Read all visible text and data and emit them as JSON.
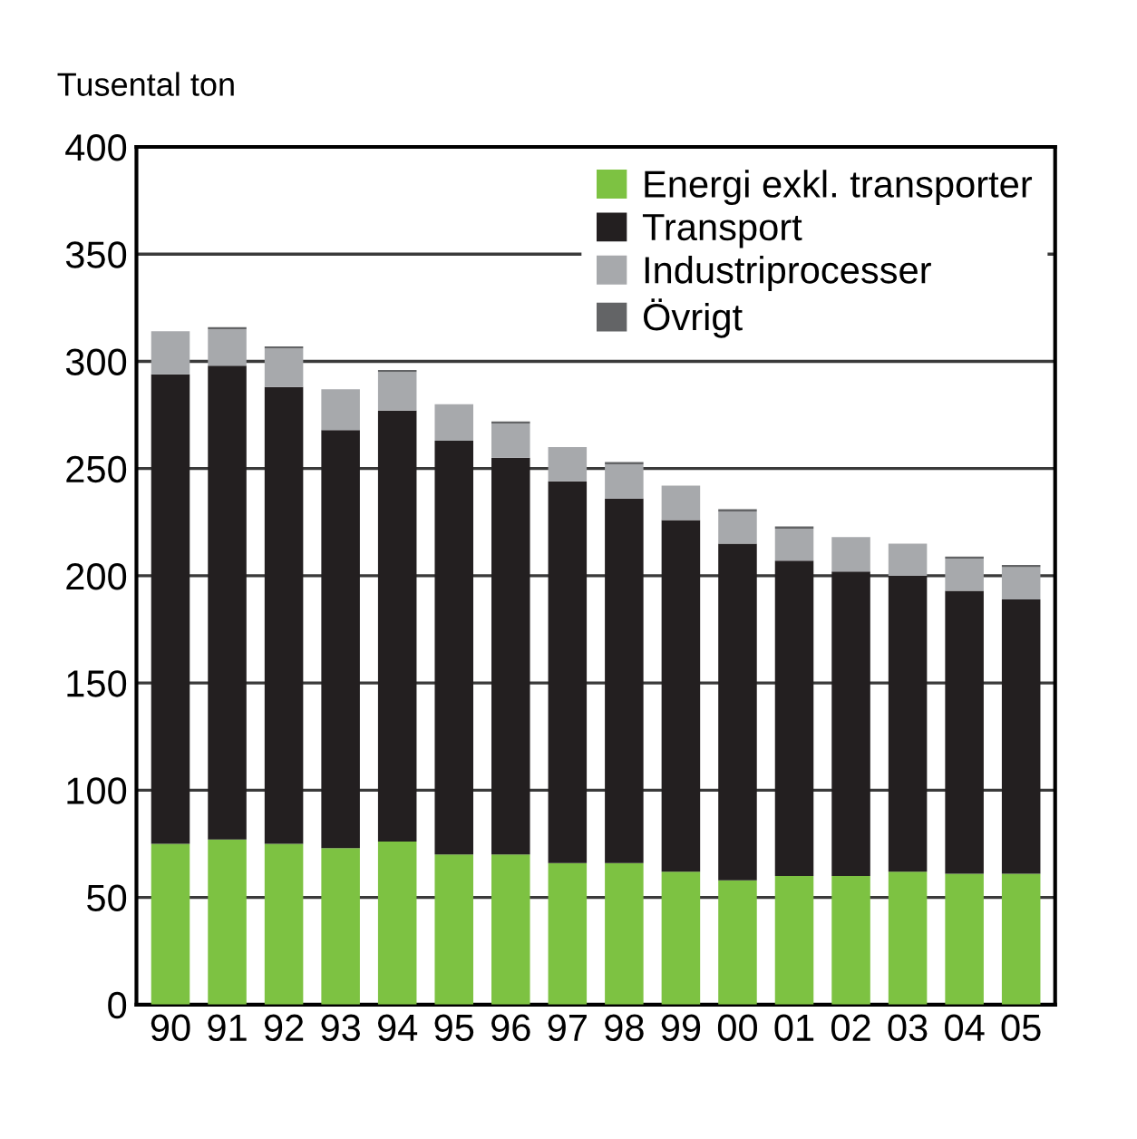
{
  "chart_data": {
    "type": "bar",
    "stacked": true,
    "ylabel": "Tusental ton",
    "categories": [
      "90",
      "91",
      "92",
      "93",
      "94",
      "95",
      "96",
      "97",
      "98",
      "99",
      "00",
      "01",
      "02",
      "03",
      "04",
      "05"
    ],
    "series": [
      {
        "name": "Energi exkl. transporter",
        "color": "#7dc242",
        "values": [
          75,
          77,
          75,
          73,
          76,
          70,
          70,
          66,
          66,
          62,
          58,
          60,
          60,
          62,
          61,
          61
        ]
      },
      {
        "name": "Transport",
        "color": "#231f20",
        "values": [
          219,
          221,
          213,
          195,
          201,
          193,
          185,
          178,
          170,
          164,
          157,
          147,
          142,
          138,
          132,
          128
        ]
      },
      {
        "name": "Industriprocesser",
        "color": "#a7a9ac",
        "values": [
          20,
          17,
          18,
          19,
          18,
          17,
          16,
          16,
          16,
          16,
          15,
          15,
          16,
          15,
          15,
          15
        ]
      },
      {
        "name": "Övrigt",
        "color": "#636466",
        "values": [
          0,
          1,
          1,
          0,
          1,
          0,
          1,
          0,
          1,
          0,
          1,
          1,
          0,
          0,
          1,
          1
        ]
      }
    ],
    "ylim": [
      0,
      400
    ],
    "yticks": [
      0,
      50,
      100,
      150,
      200,
      250,
      300,
      350,
      400
    ],
    "grid": "y",
    "legend": "top right"
  }
}
